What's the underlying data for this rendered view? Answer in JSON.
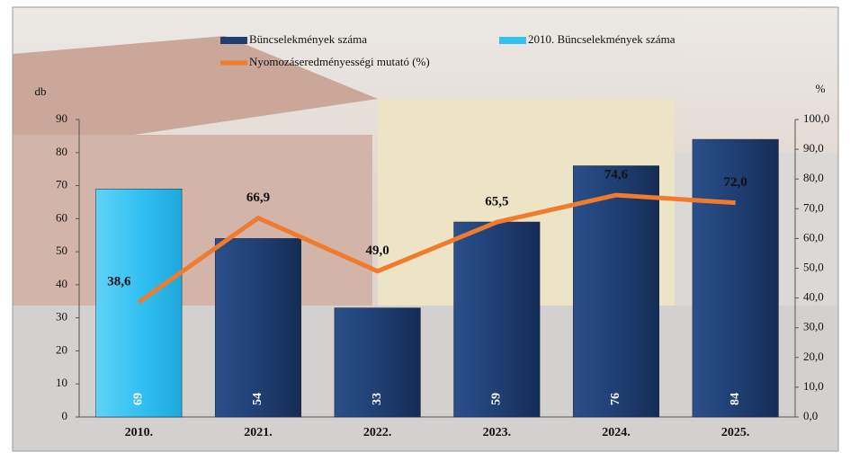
{
  "chart_data": {
    "type": "bar_line",
    "categories": [
      "2010.",
      "2021.",
      "2022.",
      "2023.",
      "2024.",
      "2025."
    ],
    "series": [
      {
        "name": "Büncselekmények száma",
        "color": "#1f3f73",
        "values": [
          null,
          54,
          33,
          59,
          76,
          84
        ]
      },
      {
        "name": "2010. Büncselekmények száma",
        "color": "#33c1f2",
        "values": [
          69,
          null,
          null,
          null,
          null,
          null
        ]
      },
      {
        "name": "Nyomozáseredményességi mutató (%)",
        "color": "#f07b2d",
        "axis": "y2",
        "type": "line",
        "values": [
          38.6,
          66.9,
          49.0,
          65.5,
          74.6,
          72.0
        ],
        "value_labels": [
          "38,6",
          "66,9",
          "49,0",
          "65,5",
          "74,6",
          "72,0"
        ]
      }
    ],
    "ylabel": "db",
    "y2label": "%",
    "ylim": [
      0,
      90
    ],
    "yticks": [
      0,
      10,
      20,
      30,
      40,
      50,
      60,
      70,
      80,
      90
    ],
    "y2lim": [
      0,
      100
    ],
    "y2ticks": [
      {
        "value": 0,
        "label": "0,0"
      },
      {
        "value": 10,
        "label": "10,0"
      },
      {
        "value": 20,
        "label": "20,0"
      },
      {
        "value": 30,
        "label": "30,0"
      },
      {
        "value": 40,
        "label": "40,0"
      },
      {
        "value": 50,
        "label": "50,0"
      },
      {
        "value": 60,
        "label": "60,0"
      },
      {
        "value": 70,
        "label": "70,0"
      },
      {
        "value": 80,
        "label": "80,0"
      },
      {
        "value": 90,
        "label": "90,0"
      },
      {
        "value": 100,
        "label": "100,0"
      }
    ]
  }
}
